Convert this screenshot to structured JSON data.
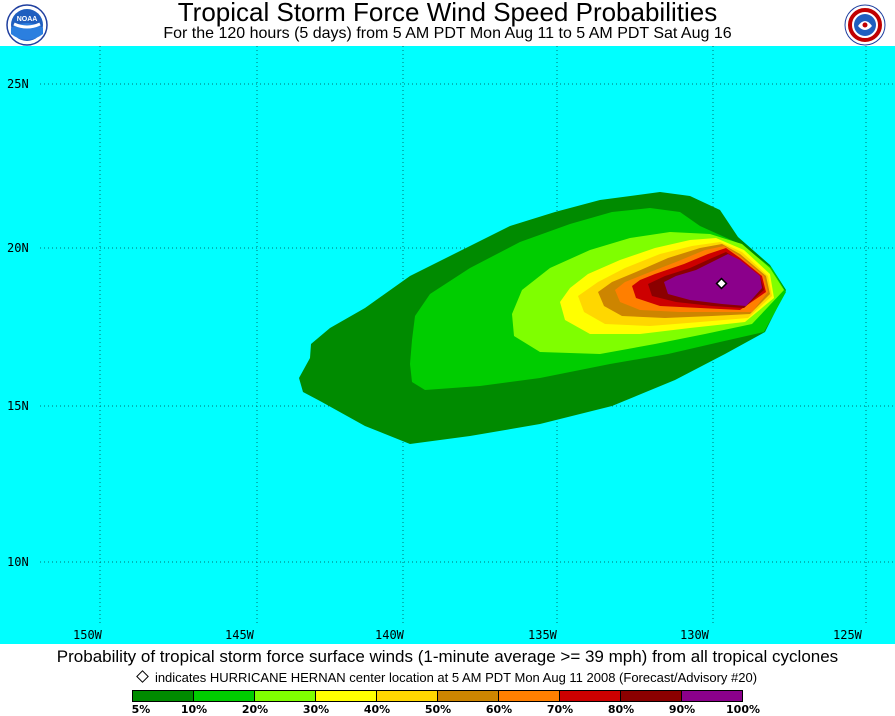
{
  "header": {
    "title": "Tropical Storm Force Wind Speed Probabilities",
    "subtitle": "For the 120 hours (5 days) from 5 AM PDT Mon Aug 11 to 5 AM PDT Sat Aug 16",
    "logo_left": "noaa-logo",
    "logo_right": "national-weather-service-logo"
  },
  "map": {
    "ocean_color": "#00ffff",
    "lat_labels": [
      "25N",
      "20N",
      "15N",
      "10N"
    ],
    "lon_labels": [
      "150W",
      "145W",
      "140W",
      "135W",
      "130W",
      "125W"
    ],
    "storm_marker": "storm-center-diamond"
  },
  "footer": {
    "caption": "Probability of tropical storm force surface winds (1-minute average >= 39 mph) from all tropical cyclones",
    "center_note": "indicates HURRICANE HERNAN center location at 5 AM PDT Mon Aug 11 2008 (Forecast/Advisory #20)"
  },
  "legend": {
    "labels": [
      "5%",
      "10%",
      "20%",
      "30%",
      "40%",
      "50%",
      "60%",
      "70%",
      "80%",
      "90%",
      "100%"
    ],
    "colors": [
      "#008b00",
      "#00cd00",
      "#7fff00",
      "#ffff00",
      "#ffd700",
      "#cd8500",
      "#ff7f00",
      "#cd0000",
      "#8b0000",
      "#8b008b"
    ]
  }
}
